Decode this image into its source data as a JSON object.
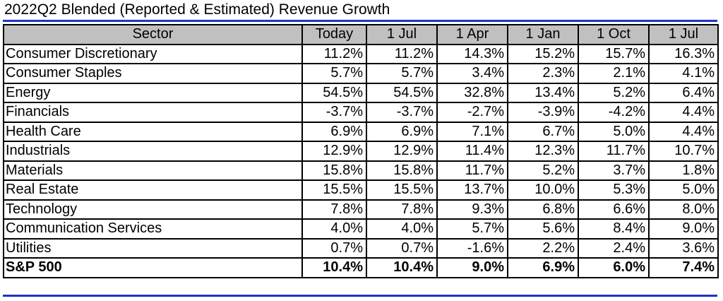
{
  "title": "2022Q2 Blended (Reported & Estimated) Revenue Growth",
  "colors": {
    "accent_rule": "#1f33c8",
    "header_bg": "#c0c0c0"
  },
  "chart_data": {
    "type": "table",
    "title": "2022Q2 Blended (Reported & Estimated) Revenue Growth",
    "columns": [
      "Sector",
      "Today",
      "1 Jul",
      "1 Apr",
      "1 Jan",
      "1 Oct",
      "1 Jul"
    ],
    "rows": [
      {
        "sector": "Consumer Discretionary",
        "values": [
          "11.2%",
          "11.2%",
          "14.3%",
          "15.2%",
          "15.7%",
          "16.3%"
        ]
      },
      {
        "sector": "Consumer Staples",
        "values": [
          "5.7%",
          "5.7%",
          "3.4%",
          "2.3%",
          "2.1%",
          "4.1%"
        ]
      },
      {
        "sector": "Energy",
        "values": [
          "54.5%",
          "54.5%",
          "32.8%",
          "13.4%",
          "5.2%",
          "6.4%"
        ]
      },
      {
        "sector": "Financials",
        "values": [
          "-3.7%",
          "-3.7%",
          "-2.7%",
          "-3.9%",
          "-4.2%",
          "4.4%"
        ]
      },
      {
        "sector": "Health Care",
        "values": [
          "6.9%",
          "6.9%",
          "7.1%",
          "6.7%",
          "5.0%",
          "4.4%"
        ]
      },
      {
        "sector": "Industrials",
        "values": [
          "12.9%",
          "12.9%",
          "11.4%",
          "12.3%",
          "11.7%",
          "10.7%"
        ]
      },
      {
        "sector": "Materials",
        "values": [
          "15.8%",
          "15.8%",
          "11.7%",
          "5.2%",
          "3.7%",
          "1.8%"
        ]
      },
      {
        "sector": "Real Estate",
        "values": [
          "15.5%",
          "15.5%",
          "13.7%",
          "10.0%",
          "5.3%",
          "5.0%"
        ]
      },
      {
        "sector": "Technology",
        "values": [
          "7.8%",
          "7.8%",
          "9.3%",
          "6.8%",
          "6.6%",
          "8.0%"
        ]
      },
      {
        "sector": "Communication Services",
        "values": [
          "4.0%",
          "4.0%",
          "5.7%",
          "5.6%",
          "8.4%",
          "9.0%"
        ]
      },
      {
        "sector": "Utilities",
        "values": [
          "0.7%",
          "0.7%",
          "-1.6%",
          "2.2%",
          "2.4%",
          "3.6%"
        ]
      },
      {
        "sector": "S&P 500",
        "values": [
          "10.4%",
          "10.4%",
          "9.0%",
          "6.9%",
          "6.0%",
          "7.4%"
        ],
        "total": true
      }
    ]
  }
}
